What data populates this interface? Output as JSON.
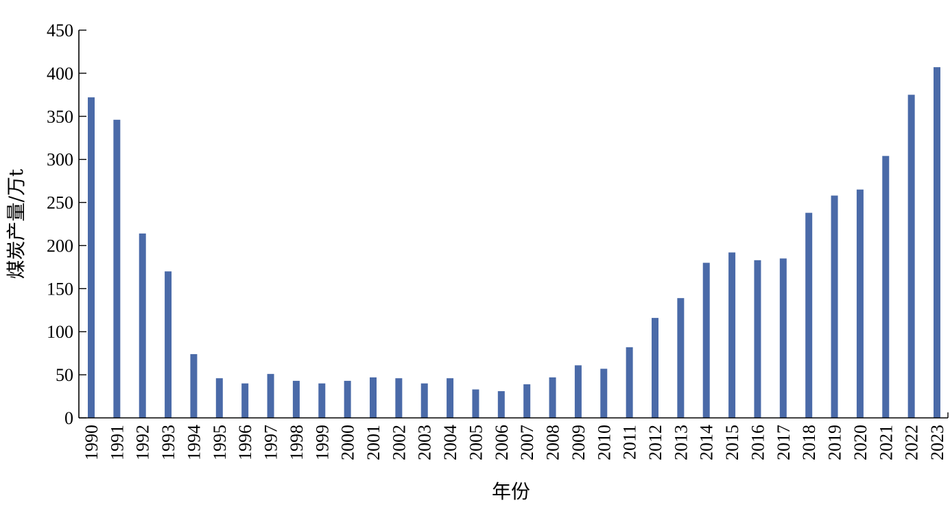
{
  "chart_data": {
    "type": "bar",
    "title": "",
    "xlabel": "年份",
    "ylabel": "煤炭产量/万t",
    "ylim": [
      0,
      450
    ],
    "yticks": [
      0,
      50,
      100,
      150,
      200,
      250,
      300,
      350,
      400,
      450
    ],
    "grid": false,
    "legend": "none",
    "bar_color": "#4a6aa8",
    "categories": [
      "1990",
      "1991",
      "1992",
      "1993",
      "1994",
      "1995",
      "1996",
      "1997",
      "1998",
      "1999",
      "2000",
      "2001",
      "2002",
      "2003",
      "2004",
      "2005",
      "2006",
      "2007",
      "2008",
      "2009",
      "2010",
      "2011",
      "2012",
      "2013",
      "2014",
      "2015",
      "2016",
      "2017",
      "2018",
      "2019",
      "2020",
      "2021",
      "2022",
      "2023"
    ],
    "values": [
      372,
      346,
      214,
      170,
      74,
      46,
      40,
      51,
      43,
      40,
      43,
      47,
      46,
      40,
      46,
      33,
      31,
      39,
      47,
      61,
      57,
      82,
      116,
      139,
      180,
      192,
      183,
      185,
      238,
      258,
      265,
      304,
      375,
      407
    ]
  }
}
